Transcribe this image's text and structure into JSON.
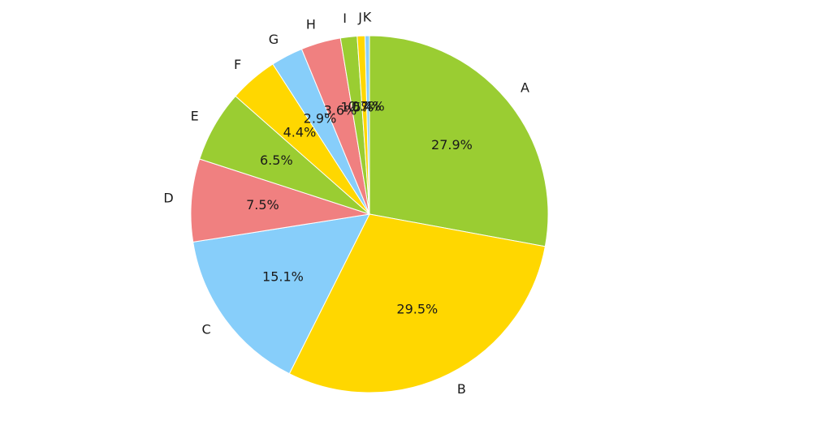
{
  "chart_data": {
    "type": "pie",
    "title": "",
    "start_angle_deg": 90,
    "direction": "clockwise",
    "legend": "none",
    "slices": [
      {
        "label": "A",
        "value": 27.9,
        "pct_text": "27.9%",
        "color": "#9ACD32"
      },
      {
        "label": "B",
        "value": 29.5,
        "pct_text": "29.5%",
        "color": "#FFD700"
      },
      {
        "label": "C",
        "value": 15.1,
        "pct_text": "15.1%",
        "color": "#87CEFA"
      },
      {
        "label": "D",
        "value": 7.5,
        "pct_text": "7.5%",
        "color": "#F08080"
      },
      {
        "label": "E",
        "value": 6.5,
        "pct_text": "6.5%",
        "color": "#9ACD32"
      },
      {
        "label": "F",
        "value": 4.4,
        "pct_text": "4.4%",
        "color": "#FFD700"
      },
      {
        "label": "G",
        "value": 2.9,
        "pct_text": "2.9%",
        "color": "#87CEFA"
      },
      {
        "label": "H",
        "value": 3.6,
        "pct_text": "3.6%",
        "color": "#F08080"
      },
      {
        "label": "I",
        "value": 1.5,
        "pct_text": "1.5%",
        "color": "#9ACD32"
      },
      {
        "label": "J",
        "value": 0.7,
        "pct_text": "0.7%",
        "color": "#FFD700"
      },
      {
        "label": "K",
        "value": 0.4,
        "pct_text": "0.4%",
        "color": "#87CEFA"
      }
    ]
  }
}
